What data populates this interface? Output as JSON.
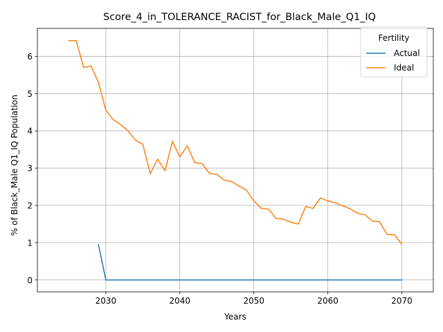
{
  "chart_data": {
    "type": "line",
    "title": "Score_4_in_TOLERANCE_RACIST_for_Black_Male_Q1_IQ",
    "xlabel": "Years",
    "ylabel": "% of Black_Male Q1_IQ Population",
    "xlim": [
      2020.75,
      2074.25
    ],
    "ylim": [
      -0.32,
      6.75
    ],
    "xticks": [
      2030,
      2040,
      2050,
      2060,
      2070
    ],
    "yticks": [
      0,
      1,
      2,
      3,
      4,
      5,
      6
    ],
    "grid": true,
    "legend": {
      "title": "Fertility",
      "position": "top-right"
    },
    "series": [
      {
        "name": "Actual",
        "color": "#1f77b4",
        "x": [
          2029,
          2030,
          2031,
          2032,
          2033,
          2034,
          2035,
          2036,
          2037,
          2038,
          2039,
          2040,
          2041,
          2042,
          2043,
          2044,
          2045,
          2046,
          2047,
          2048,
          2049,
          2050,
          2051,
          2052,
          2053,
          2054,
          2055,
          2056,
          2057,
          2058,
          2059,
          2060,
          2061,
          2062,
          2063,
          2064,
          2065,
          2066,
          2067,
          2068,
          2069,
          2070
        ],
        "values": [
          0.95,
          0,
          0,
          0,
          0,
          0,
          0,
          0,
          0,
          0,
          0,
          0,
          0,
          0,
          0,
          0,
          0,
          0,
          0,
          0,
          0,
          0,
          0,
          0,
          0,
          0,
          0,
          0,
          0,
          0,
          0,
          0,
          0,
          0,
          0,
          0,
          0,
          0,
          0,
          0,
          0,
          0
        ]
      },
      {
        "name": "Ideal",
        "color": "#ff7f0e",
        "x": [
          2025,
          2026,
          2027,
          2028,
          2029,
          2030,
          2031,
          2032,
          2033,
          2034,
          2035,
          2036,
          2037,
          2038,
          2039,
          2040,
          2041,
          2042,
          2043,
          2044,
          2045,
          2046,
          2047,
          2048,
          2049,
          2050,
          2051,
          2052,
          2053,
          2054,
          2055,
          2056,
          2057,
          2058,
          2059,
          2060,
          2061,
          2062,
          2063,
          2064,
          2065,
          2066,
          2067,
          2068,
          2069,
          2070
        ],
        "values": [
          6.42,
          6.42,
          5.7,
          5.74,
          5.3,
          4.55,
          4.3,
          4.17,
          4.0,
          3.75,
          3.64,
          2.85,
          3.24,
          2.93,
          3.72,
          3.3,
          3.6,
          3.15,
          3.12,
          2.86,
          2.83,
          2.68,
          2.64,
          2.52,
          2.41,
          2.12,
          1.92,
          1.9,
          1.65,
          1.63,
          1.55,
          1.5,
          1.97,
          1.92,
          2.2,
          2.12,
          2.07,
          1.99,
          1.91,
          1.79,
          1.75,
          1.58,
          1.56,
          1.22,
          1.21,
          0.96
        ]
      }
    ]
  }
}
